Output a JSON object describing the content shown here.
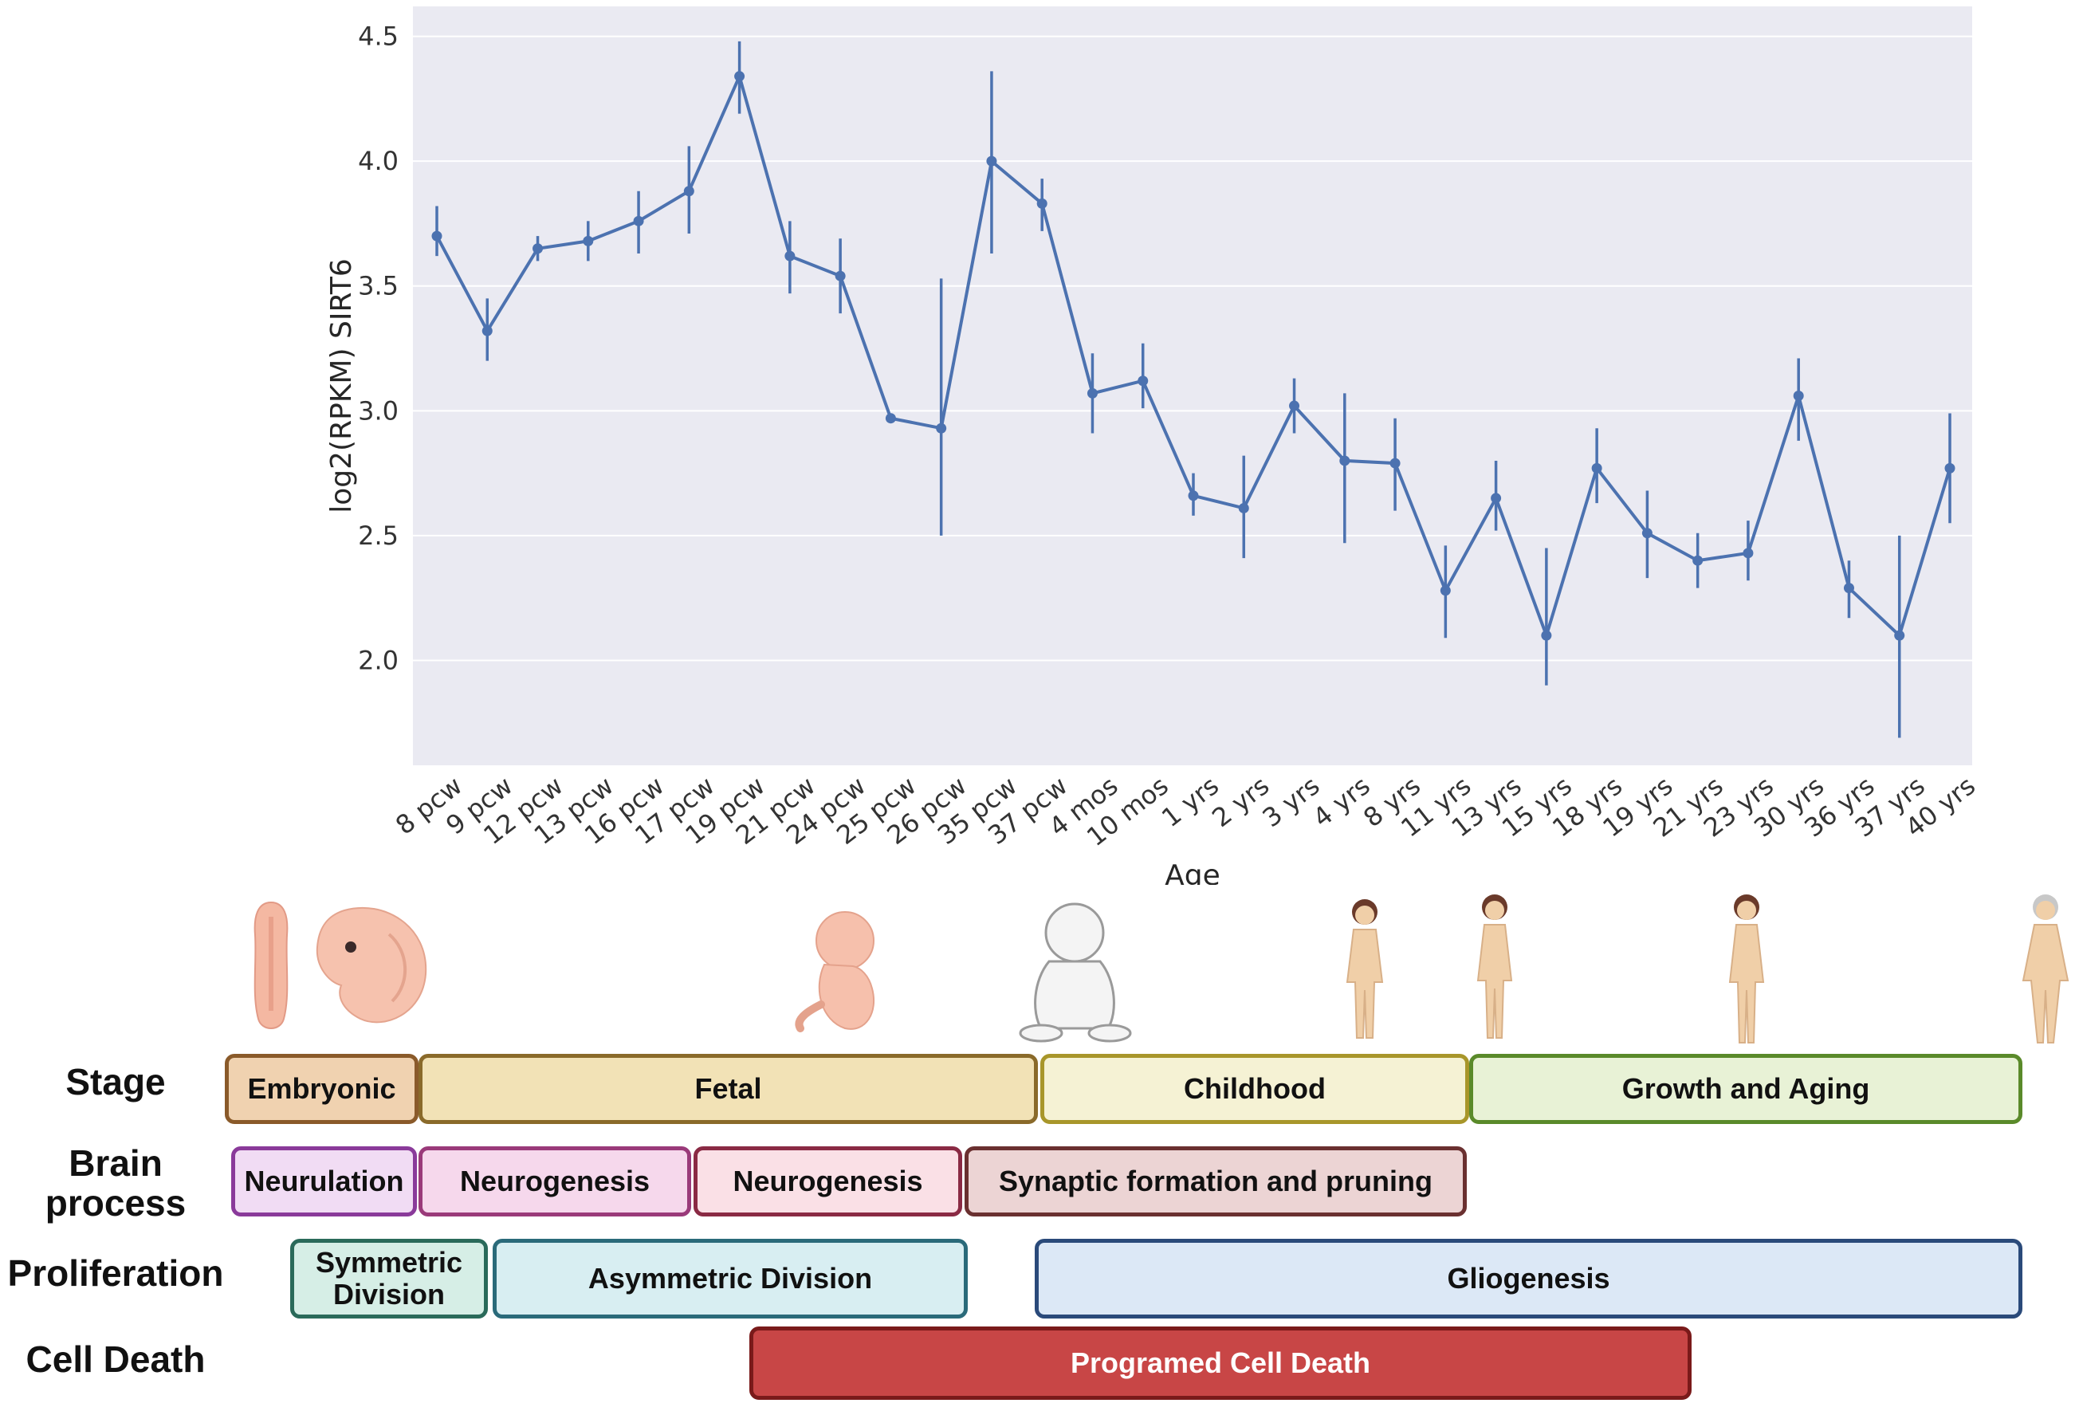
{
  "chart_data": {
    "type": "line",
    "title": "",
    "xlabel": "Age",
    "ylabel": "log2(RPKM) SIRT6",
    "ylim": [
      1.58,
      4.62
    ],
    "yticks": [
      "2.0",
      "2.5",
      "3.0",
      "3.5",
      "4.0",
      "4.5"
    ],
    "categories": [
      "8 pcw",
      "9 pcw",
      "12 pcw",
      "13 pcw",
      "16 pcw",
      "17 pcw",
      "19 pcw",
      "21 pcw",
      "24 pcw",
      "25 pcw",
      "26 pcw",
      "35 pcw",
      "37 pcw",
      "4 mos",
      "10 mos",
      "1 yrs",
      "2 yrs",
      "3 yrs",
      "4 yrs",
      "8 yrs",
      "11 yrs",
      "13 yrs",
      "15 yrs",
      "18 yrs",
      "19 yrs",
      "21 yrs",
      "23 yrs",
      "30 yrs",
      "36 yrs",
      "37 yrs",
      "40 yrs"
    ],
    "values": [
      3.7,
      3.32,
      3.65,
      3.68,
      3.76,
      3.88,
      4.34,
      3.62,
      3.54,
      2.97,
      2.93,
      4.0,
      3.83,
      3.07,
      3.12,
      2.66,
      2.61,
      3.02,
      2.8,
      2.79,
      2.28,
      2.65,
      2.1,
      2.77,
      2.51,
      2.4,
      2.43,
      3.06,
      2.29,
      2.1,
      2.77
    ],
    "error_low": [
      3.62,
      3.2,
      3.6,
      3.6,
      3.63,
      3.71,
      4.19,
      3.47,
      3.39,
      2.97,
      2.5,
      3.63,
      3.72,
      2.91,
      3.01,
      2.58,
      2.41,
      2.91,
      2.47,
      2.6,
      2.09,
      2.52,
      1.9,
      2.63,
      2.33,
      2.29,
      2.32,
      2.88,
      2.17,
      1.69,
      2.55
    ],
    "error_high": [
      3.82,
      3.45,
      3.7,
      3.76,
      3.88,
      4.06,
      4.48,
      3.76,
      3.69,
      2.97,
      3.53,
      4.36,
      3.93,
      3.23,
      3.27,
      2.75,
      2.82,
      3.13,
      3.07,
      2.97,
      2.46,
      2.8,
      2.45,
      2.93,
      2.68,
      2.51,
      2.56,
      3.21,
      2.4,
      2.5,
      2.99
    ],
    "series_color": "#4c72b0",
    "background": "#eaeaf2",
    "grid": true
  },
  "timeline": {
    "rows": {
      "stage": "Stage",
      "brain_process": "Brain process",
      "proliferation": "Proliferation",
      "cell_death": "Cell Death"
    },
    "stage": [
      "Embryonic",
      "Fetal",
      "Childhood",
      "Growth and Aging"
    ],
    "brain_process": [
      "Neurulation",
      "Neurogenesis",
      "Neurogenesis",
      "Synaptic formation and pruning"
    ],
    "proliferation": [
      "Symmetric Division",
      "Asymmetric Division",
      "Gliogenesis"
    ],
    "cell_death": [
      "Programed Cell Death"
    ]
  },
  "colors": {
    "embryonic_fill": "#f0d2b0",
    "embryonic_border": "#8a5a2a",
    "fetal_fill": "#f2e2b6",
    "fetal_border": "#8a6a2a",
    "childhood_fill": "#f5f2d4",
    "childhood_border": "#a8962a",
    "aging_fill": "#e8f2d6",
    "aging_border": "#5a8a2a",
    "neurulation_fill": "#f1dcf4",
    "neurulation_border": "#8a3a9a",
    "neuro1_fill": "#f6d8ec",
    "neuro1_border": "#9a3a7a",
    "neuro2_fill": "#fae0e6",
    "neuro2_border": "#8a2a44",
    "synaptic_fill": "#ecd4d4",
    "synaptic_border": "#6a3030",
    "symdiv_fill": "#d6eee6",
    "symdiv_border": "#2a6a5a",
    "asymdiv_fill": "#d8eef2",
    "asymdiv_border": "#2a6a7a",
    "glio_fill": "#dce8f6",
    "glio_border": "#2a4a7a",
    "pcd_fill": "#c84646",
    "pcd_border": "#7a1a1a"
  }
}
